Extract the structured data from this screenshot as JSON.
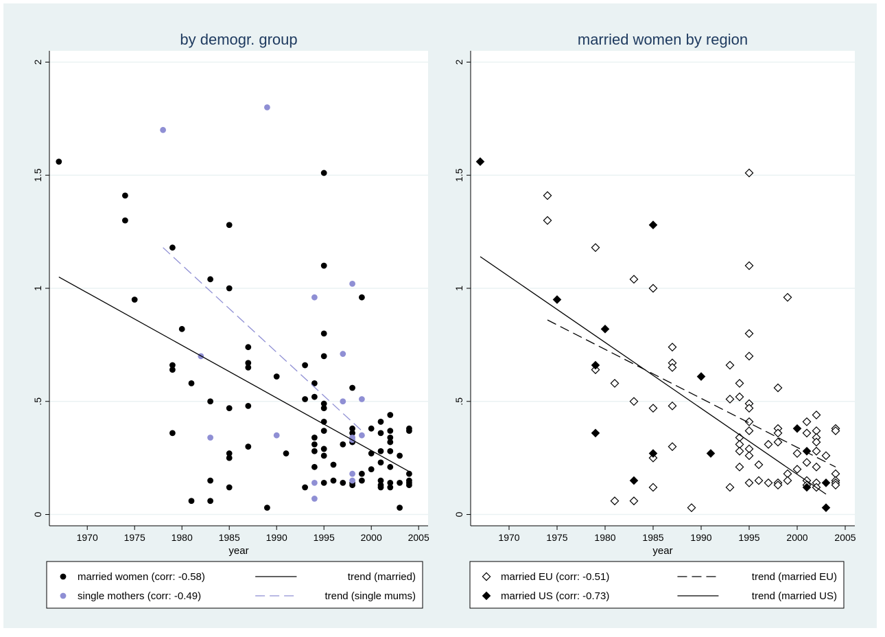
{
  "colors": {
    "background": "#eaf2f3",
    "plot_background": "#ffffff",
    "title": "#1e3a5f",
    "married_women": "#000000",
    "single_mothers": "#8f8fd4",
    "gridline": "#eaf2f3"
  },
  "chart_data": [
    {
      "type": "scatter",
      "title": "by demogr. group",
      "xlabel": "year",
      "ylabel": "",
      "xlim": [
        1966,
        2006
      ],
      "ylim": [
        -0.05,
        2.05
      ],
      "x_ticks": [
        "1970",
        "1975",
        "1980",
        "1985",
        "1990",
        "1995",
        "2000",
        "2005"
      ],
      "y_ticks": [
        "0",
        ".5",
        "1",
        "1.5",
        "2"
      ],
      "grid": true,
      "legend_position": "bottom",
      "series": [
        {
          "name": "married women (corr: -0.58)",
          "marker": "filled-circle",
          "color": "#000000",
          "points": [
            [
              1967,
              1.56
            ],
            [
              1974,
              1.41
            ],
            [
              1974,
              1.3
            ],
            [
              1975,
              0.95
            ],
            [
              1979,
              1.18
            ],
            [
              1979,
              0.66
            ],
            [
              1979,
              0.64
            ],
            [
              1979,
              0.36
            ],
            [
              1980,
              0.82
            ],
            [
              1981,
              0.58
            ],
            [
              1981,
              0.06
            ],
            [
              1983,
              1.04
            ],
            [
              1983,
              0.5
            ],
            [
              1983,
              0.15
            ],
            [
              1983,
              0.06
            ],
            [
              1985,
              1.28
            ],
            [
              1985,
              1.0
            ],
            [
              1985,
              0.47
            ],
            [
              1985,
              0.27
            ],
            [
              1985,
              0.25
            ],
            [
              1985,
              0.12
            ],
            [
              1987,
              0.74
            ],
            [
              1987,
              0.67
            ],
            [
              1987,
              0.65
            ],
            [
              1987,
              0.48
            ],
            [
              1987,
              0.3
            ],
            [
              1989,
              0.03
            ],
            [
              1990,
              0.61
            ],
            [
              1991,
              0.27
            ],
            [
              1993,
              0.66
            ],
            [
              1993,
              0.51
            ],
            [
              1993,
              0.12
            ],
            [
              1994,
              0.58
            ],
            [
              1994,
              0.52
            ],
            [
              1994,
              0.34
            ],
            [
              1994,
              0.31
            ],
            [
              1994,
              0.28
            ],
            [
              1994,
              0.21
            ],
            [
              1995,
              1.51
            ],
            [
              1995,
              1.1
            ],
            [
              1995,
              0.8
            ],
            [
              1995,
              0.7
            ],
            [
              1995,
              0.49
            ],
            [
              1995,
              0.47
            ],
            [
              1995,
              0.41
            ],
            [
              1995,
              0.37
            ],
            [
              1995,
              0.29
            ],
            [
              1995,
              0.26
            ],
            [
              1995,
              0.14
            ],
            [
              1996,
              0.22
            ],
            [
              1996,
              0.15
            ],
            [
              1997,
              0.31
            ],
            [
              1997,
              0.14
            ],
            [
              1998,
              0.56
            ],
            [
              1998,
              0.38
            ],
            [
              1998,
              0.36
            ],
            [
              1998,
              0.32
            ],
            [
              1998,
              0.14
            ],
            [
              1998,
              0.13
            ],
            [
              1999,
              0.96
            ],
            [
              1999,
              0.18
            ],
            [
              1999,
              0.15
            ],
            [
              2000,
              0.38
            ],
            [
              2000,
              0.27
            ],
            [
              2000,
              0.2
            ],
            [
              2001,
              0.41
            ],
            [
              2001,
              0.36
            ],
            [
              2001,
              0.28
            ],
            [
              2001,
              0.23
            ],
            [
              2001,
              0.15
            ],
            [
              2001,
              0.13
            ],
            [
              2001,
              0.12
            ],
            [
              2002,
              0.44
            ],
            [
              2002,
              0.37
            ],
            [
              2002,
              0.34
            ],
            [
              2002,
              0.32
            ],
            [
              2002,
              0.28
            ],
            [
              2002,
              0.21
            ],
            [
              2002,
              0.14
            ],
            [
              2002,
              0.12
            ],
            [
              2003,
              0.26
            ],
            [
              2003,
              0.14
            ],
            [
              2003,
              0.03
            ],
            [
              2004,
              0.38
            ],
            [
              2004,
              0.37
            ],
            [
              2004,
              0.18
            ],
            [
              2004,
              0.15
            ],
            [
              2004,
              0.14
            ],
            [
              2004,
              0.13
            ]
          ]
        },
        {
          "name": "single mothers (corr: -0.49)",
          "marker": "filled-circle",
          "color": "#8f8fd4",
          "points": [
            [
              1978,
              1.7
            ],
            [
              1989,
              1.8
            ],
            [
              1982,
              0.7
            ],
            [
              1983,
              0.34
            ],
            [
              1990,
              0.35
            ],
            [
              1994,
              0.96
            ],
            [
              1994,
              0.14
            ],
            [
              1994,
              0.07
            ],
            [
              1997,
              0.71
            ],
            [
              1997,
              0.5
            ],
            [
              1998,
              1.02
            ],
            [
              1998,
              0.34
            ],
            [
              1998,
              0.33
            ],
            [
              1998,
              0.18
            ],
            [
              1998,
              0.15
            ],
            [
              1999,
              0.51
            ],
            [
              1999,
              0.35
            ]
          ]
        },
        {
          "name": "trend (married)",
          "line": "solid",
          "color": "#000000",
          "points": [
            [
              1967,
              1.05
            ],
            [
              2004,
              0.19
            ]
          ]
        },
        {
          "name": "trend (single mums)",
          "line": "dashed",
          "color": "#8f8fd4",
          "points": [
            [
              1978,
              1.18
            ],
            [
              1999,
              0.37
            ]
          ]
        }
      ]
    },
    {
      "type": "scatter",
      "title": "married women by region",
      "xlabel": "year",
      "ylabel": "",
      "xlim": [
        1966,
        2006
      ],
      "ylim": [
        -0.05,
        2.05
      ],
      "x_ticks": [
        "1970",
        "1975",
        "1980",
        "1985",
        "1990",
        "1995",
        "2000",
        "2005"
      ],
      "y_ticks": [
        "0",
        ".5",
        "1",
        "1.5",
        "2"
      ],
      "grid": true,
      "legend_position": "bottom",
      "series": [
        {
          "name": "married EU (corr: -0.51)",
          "marker": "hollow-diamond",
          "color": "#000000",
          "points": [
            [
              1974,
              1.41
            ],
            [
              1974,
              1.3
            ],
            [
              1979,
              1.18
            ],
            [
              1979,
              0.64
            ],
            [
              1981,
              0.58
            ],
            [
              1981,
              0.06
            ],
            [
              1983,
              1.04
            ],
            [
              1983,
              0.5
            ],
            [
              1983,
              0.06
            ],
            [
              1985,
              1.0
            ],
            [
              1985,
              0.47
            ],
            [
              1985,
              0.25
            ],
            [
              1985,
              0.12
            ],
            [
              1987,
              0.74
            ],
            [
              1987,
              0.67
            ],
            [
              1987,
              0.65
            ],
            [
              1987,
              0.48
            ],
            [
              1987,
              0.3
            ],
            [
              1989,
              0.03
            ],
            [
              1993,
              0.66
            ],
            [
              1993,
              0.51
            ],
            [
              1993,
              0.12
            ],
            [
              1994,
              0.58
            ],
            [
              1994,
              0.52
            ],
            [
              1994,
              0.34
            ],
            [
              1994,
              0.31
            ],
            [
              1994,
              0.28
            ],
            [
              1994,
              0.21
            ],
            [
              1995,
              1.51
            ],
            [
              1995,
              1.1
            ],
            [
              1995,
              0.8
            ],
            [
              1995,
              0.7
            ],
            [
              1995,
              0.49
            ],
            [
              1995,
              0.47
            ],
            [
              1995,
              0.41
            ],
            [
              1995,
              0.37
            ],
            [
              1995,
              0.29
            ],
            [
              1995,
              0.26
            ],
            [
              1995,
              0.14
            ],
            [
              1996,
              0.22
            ],
            [
              1996,
              0.15
            ],
            [
              1997,
              0.31
            ],
            [
              1997,
              0.14
            ],
            [
              1998,
              0.56
            ],
            [
              1998,
              0.38
            ],
            [
              1998,
              0.36
            ],
            [
              1998,
              0.32
            ],
            [
              1998,
              0.14
            ],
            [
              1998,
              0.13
            ],
            [
              1999,
              0.96
            ],
            [
              1999,
              0.18
            ],
            [
              1999,
              0.15
            ],
            [
              2000,
              0.27
            ],
            [
              2000,
              0.2
            ],
            [
              2001,
              0.41
            ],
            [
              2001,
              0.36
            ],
            [
              2001,
              0.23
            ],
            [
              2001,
              0.15
            ],
            [
              2001,
              0.13
            ],
            [
              2002,
              0.44
            ],
            [
              2002,
              0.37
            ],
            [
              2002,
              0.34
            ],
            [
              2002,
              0.32
            ],
            [
              2002,
              0.28
            ],
            [
              2002,
              0.21
            ],
            [
              2002,
              0.14
            ],
            [
              2002,
              0.12
            ],
            [
              2003,
              0.26
            ],
            [
              2004,
              0.38
            ],
            [
              2004,
              0.37
            ],
            [
              2004,
              0.18
            ],
            [
              2004,
              0.15
            ],
            [
              2004,
              0.14
            ],
            [
              2004,
              0.13
            ]
          ]
        },
        {
          "name": "married US (corr: -0.73)",
          "marker": "filled-diamond",
          "color": "#000000",
          "points": [
            [
              1967,
              1.56
            ],
            [
              1975,
              0.95
            ],
            [
              1979,
              0.66
            ],
            [
              1979,
              0.36
            ],
            [
              1980,
              0.82
            ],
            [
              1983,
              0.15
            ],
            [
              1985,
              1.28
            ],
            [
              1985,
              0.27
            ],
            [
              1990,
              0.61
            ],
            [
              1991,
              0.27
            ],
            [
              2000,
              0.38
            ],
            [
              2001,
              0.28
            ],
            [
              2001,
              0.12
            ],
            [
              2003,
              0.14
            ],
            [
              2003,
              0.03
            ]
          ]
        },
        {
          "name": "trend (married EU)",
          "line": "dashed",
          "color": "#000000",
          "points": [
            [
              1974,
              0.86
            ],
            [
              2004,
              0.21
            ]
          ]
        },
        {
          "name": "trend (married US)",
          "line": "solid",
          "color": "#000000",
          "points": [
            [
              1967,
              1.14
            ],
            [
              2003,
              0.09
            ]
          ]
        }
      ]
    }
  ]
}
